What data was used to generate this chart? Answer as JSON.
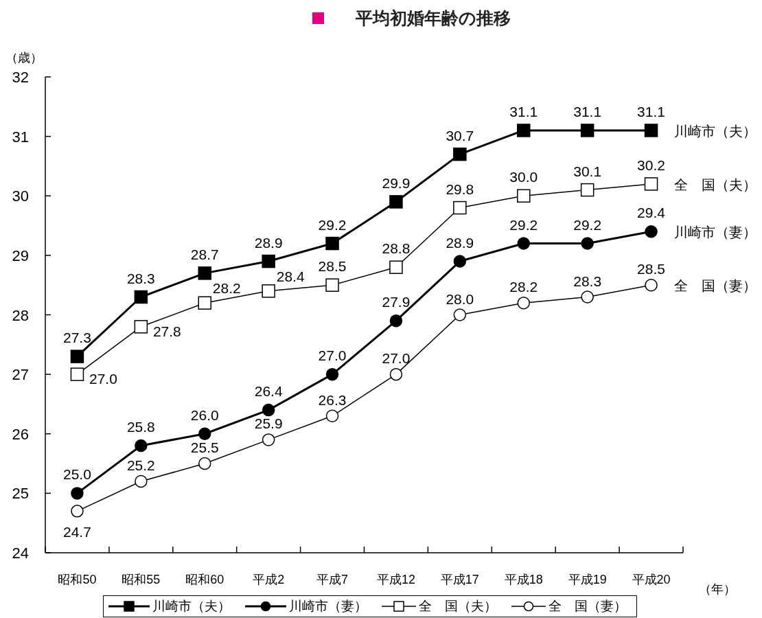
{
  "chart_data": {
    "type": "line",
    "title": "平均初婚年齢の推移",
    "xlabel": "（年）",
    "ylabel": "（歳）",
    "categories": [
      "昭和50",
      "昭和55",
      "昭和60",
      "平成2",
      "平成7",
      "平成12",
      "平成17",
      "平成18",
      "平成19",
      "平成20"
    ],
    "series": [
      {
        "name": "川崎市（夫）",
        "color": "#000000",
        "marker": "square",
        "values": [
          27.3,
          28.3,
          28.7,
          28.9,
          29.2,
          29.9,
          30.7,
          31.1,
          31.1,
          31.1
        ],
        "value_labels": [
          "27.3",
          "28.3",
          "28.7",
          "28.9",
          "29.2",
          "29.9",
          "30.7",
          "31.1",
          "31.1",
          "31.1"
        ]
      },
      {
        "name": "川崎市（妻）",
        "color": "#000000",
        "marker": "circle",
        "values": [
          25.0,
          25.8,
          26.0,
          26.4,
          27.0,
          27.9,
          28.9,
          29.2,
          29.2,
          29.4
        ],
        "value_labels": [
          "25.0",
          "25.8",
          "26.0",
          "26.4",
          "27.0",
          "27.9",
          "28.9",
          "29.2",
          "29.2",
          "29.4"
        ]
      },
      {
        "name": "全　国（夫）",
        "color": "#000000",
        "marker": "square",
        "values": [
          27.0,
          27.8,
          28.2,
          28.4,
          28.5,
          28.8,
          29.8,
          30.0,
          30.1,
          30.2
        ],
        "value_labels": [
          "27.0",
          "27.8",
          "28.2",
          "28.4",
          "28.5",
          "28.8",
          "29.8",
          "30.0",
          "30.1",
          "30.2"
        ]
      },
      {
        "name": "全　国（妻）",
        "color": "#000000",
        "marker": "circle",
        "values": [
          24.7,
          25.2,
          25.5,
          25.9,
          26.3,
          27.0,
          28.0,
          28.2,
          28.3,
          28.5
        ],
        "value_labels": [
          "24.7",
          "25.2",
          "25.5",
          "25.9",
          "26.3",
          "27.0",
          "28.0",
          "28.2",
          "28.3",
          "28.5"
        ]
      }
    ],
    "ylim": [
      24,
      32
    ],
    "yticks": [
      24,
      25,
      26,
      27,
      28,
      29,
      30,
      31,
      32
    ],
    "legend": "bottom"
  }
}
